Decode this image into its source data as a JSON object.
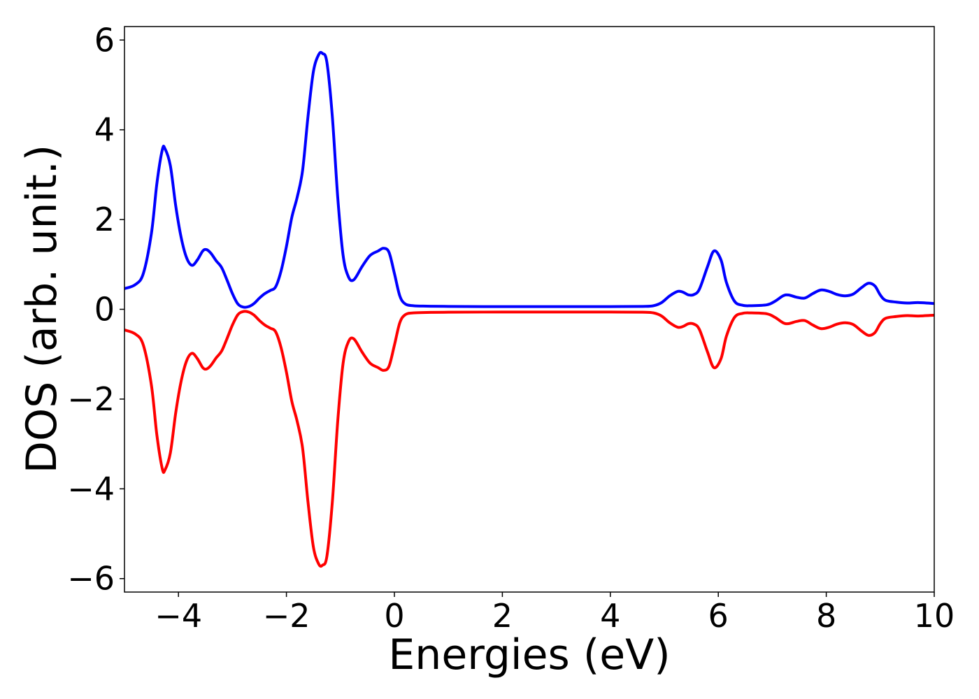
{
  "chart_data": {
    "type": "line",
    "title": "",
    "xlabel": "Energies (eV)",
    "ylabel": "DOS (arb. unit.)",
    "xlim": [
      -5,
      10
    ],
    "ylim": [
      -6.3,
      6.3
    ],
    "xticks": [
      -4,
      -2,
      0,
      2,
      4,
      6,
      8,
      10
    ],
    "xtick_labels": [
      "−4",
      "−2",
      "0",
      "2",
      "4",
      "6",
      "8",
      "10"
    ],
    "yticks": [
      -6,
      -4,
      -2,
      0,
      2,
      4,
      6
    ],
    "ytick_labels": [
      "−6",
      "−4",
      "−2",
      "0",
      "2",
      "4",
      "6"
    ],
    "grid": false,
    "legend": false,
    "series": [
      {
        "color": "#0000ff",
        "points": [
          [
            -5.0,
            0.46
          ],
          [
            -4.8,
            0.55
          ],
          [
            -4.65,
            0.8
          ],
          [
            -4.5,
            1.7
          ],
          [
            -4.4,
            2.8
          ],
          [
            -4.3,
            3.55
          ],
          [
            -4.25,
            3.58
          ],
          [
            -4.15,
            3.2
          ],
          [
            -4.05,
            2.3
          ],
          [
            -3.95,
            1.6
          ],
          [
            -3.85,
            1.15
          ],
          [
            -3.75,
            0.98
          ],
          [
            -3.65,
            1.1
          ],
          [
            -3.55,
            1.3
          ],
          [
            -3.48,
            1.33
          ],
          [
            -3.4,
            1.25
          ],
          [
            -3.3,
            1.08
          ],
          [
            -3.2,
            0.93
          ],
          [
            -3.1,
            0.65
          ],
          [
            -3.0,
            0.35
          ],
          [
            -2.9,
            0.12
          ],
          [
            -2.8,
            0.05
          ],
          [
            -2.7,
            0.06
          ],
          [
            -2.6,
            0.13
          ],
          [
            -2.5,
            0.25
          ],
          [
            -2.4,
            0.35
          ],
          [
            -2.3,
            0.42
          ],
          [
            -2.2,
            0.5
          ],
          [
            -2.1,
            0.85
          ],
          [
            -2.0,
            1.4
          ],
          [
            -1.9,
            2.05
          ],
          [
            -1.8,
            2.5
          ],
          [
            -1.7,
            3.1
          ],
          [
            -1.6,
            4.3
          ],
          [
            -1.5,
            5.3
          ],
          [
            -1.4,
            5.68
          ],
          [
            -1.33,
            5.7
          ],
          [
            -1.25,
            5.5
          ],
          [
            -1.15,
            4.3
          ],
          [
            -1.05,
            2.5
          ],
          [
            -0.95,
            1.2
          ],
          [
            -0.85,
            0.72
          ],
          [
            -0.75,
            0.66
          ],
          [
            -0.6,
            0.95
          ],
          [
            -0.45,
            1.2
          ],
          [
            -0.3,
            1.3
          ],
          [
            -0.2,
            1.36
          ],
          [
            -0.1,
            1.27
          ],
          [
            0.0,
            0.8
          ],
          [
            0.1,
            0.3
          ],
          [
            0.2,
            0.12
          ],
          [
            0.35,
            0.08
          ],
          [
            0.6,
            0.07
          ],
          [
            1.0,
            0.065
          ],
          [
            2.0,
            0.06
          ],
          [
            3.0,
            0.06
          ],
          [
            4.0,
            0.06
          ],
          [
            4.6,
            0.065
          ],
          [
            4.8,
            0.08
          ],
          [
            4.95,
            0.15
          ],
          [
            5.1,
            0.3
          ],
          [
            5.25,
            0.4
          ],
          [
            5.35,
            0.38
          ],
          [
            5.45,
            0.32
          ],
          [
            5.55,
            0.33
          ],
          [
            5.65,
            0.45
          ],
          [
            5.8,
            0.95
          ],
          [
            5.92,
            1.3
          ],
          [
            6.05,
            1.1
          ],
          [
            6.15,
            0.6
          ],
          [
            6.3,
            0.18
          ],
          [
            6.45,
            0.09
          ],
          [
            6.6,
            0.08
          ],
          [
            6.9,
            0.1
          ],
          [
            7.05,
            0.18
          ],
          [
            7.2,
            0.3
          ],
          [
            7.3,
            0.32
          ],
          [
            7.45,
            0.27
          ],
          [
            7.6,
            0.25
          ],
          [
            7.75,
            0.35
          ],
          [
            7.9,
            0.43
          ],
          [
            8.05,
            0.4
          ],
          [
            8.2,
            0.33
          ],
          [
            8.35,
            0.3
          ],
          [
            8.5,
            0.34
          ],
          [
            8.65,
            0.48
          ],
          [
            8.78,
            0.58
          ],
          [
            8.9,
            0.52
          ],
          [
            9.0,
            0.32
          ],
          [
            9.1,
            0.2
          ],
          [
            9.3,
            0.16
          ],
          [
            9.5,
            0.14
          ],
          [
            9.7,
            0.15
          ],
          [
            10.0,
            0.13
          ]
        ]
      },
      {
        "color": "#ff0000",
        "points": [
          [
            -5.0,
            -0.46
          ],
          [
            -4.8,
            -0.55
          ],
          [
            -4.65,
            -0.8
          ],
          [
            -4.5,
            -1.7
          ],
          [
            -4.4,
            -2.8
          ],
          [
            -4.3,
            -3.55
          ],
          [
            -4.25,
            -3.58
          ],
          [
            -4.15,
            -3.2
          ],
          [
            -4.05,
            -2.3
          ],
          [
            -3.95,
            -1.6
          ],
          [
            -3.85,
            -1.15
          ],
          [
            -3.75,
            -0.98
          ],
          [
            -3.65,
            -1.1
          ],
          [
            -3.55,
            -1.3
          ],
          [
            -3.48,
            -1.33
          ],
          [
            -3.4,
            -1.25
          ],
          [
            -3.3,
            -1.08
          ],
          [
            -3.2,
            -0.93
          ],
          [
            -3.1,
            -0.65
          ],
          [
            -3.0,
            -0.35
          ],
          [
            -2.9,
            -0.12
          ],
          [
            -2.8,
            -0.05
          ],
          [
            -2.7,
            -0.06
          ],
          [
            -2.6,
            -0.13
          ],
          [
            -2.5,
            -0.25
          ],
          [
            -2.4,
            -0.35
          ],
          [
            -2.3,
            -0.42
          ],
          [
            -2.2,
            -0.5
          ],
          [
            -2.1,
            -0.85
          ],
          [
            -2.0,
            -1.4
          ],
          [
            -1.9,
            -2.05
          ],
          [
            -1.8,
            -2.5
          ],
          [
            -1.7,
            -3.1
          ],
          [
            -1.6,
            -4.3
          ],
          [
            -1.5,
            -5.3
          ],
          [
            -1.4,
            -5.68
          ],
          [
            -1.33,
            -5.7
          ],
          [
            -1.25,
            -5.5
          ],
          [
            -1.15,
            -4.3
          ],
          [
            -1.05,
            -2.5
          ],
          [
            -0.95,
            -1.2
          ],
          [
            -0.85,
            -0.72
          ],
          [
            -0.75,
            -0.66
          ],
          [
            -0.6,
            -0.95
          ],
          [
            -0.45,
            -1.2
          ],
          [
            -0.3,
            -1.3
          ],
          [
            -0.2,
            -1.36
          ],
          [
            -0.1,
            -1.27
          ],
          [
            0.0,
            -0.8
          ],
          [
            0.1,
            -0.3
          ],
          [
            0.2,
            -0.12
          ],
          [
            0.35,
            -0.08
          ],
          [
            0.6,
            -0.07
          ],
          [
            1.0,
            -0.065
          ],
          [
            2.0,
            -0.06
          ],
          [
            3.0,
            -0.06
          ],
          [
            4.0,
            -0.06
          ],
          [
            4.6,
            -0.065
          ],
          [
            4.8,
            -0.08
          ],
          [
            4.95,
            -0.15
          ],
          [
            5.1,
            -0.3
          ],
          [
            5.25,
            -0.4
          ],
          [
            5.35,
            -0.38
          ],
          [
            5.45,
            -0.32
          ],
          [
            5.55,
            -0.33
          ],
          [
            5.65,
            -0.45
          ],
          [
            5.8,
            -0.95
          ],
          [
            5.92,
            -1.3
          ],
          [
            6.05,
            -1.1
          ],
          [
            6.15,
            -0.6
          ],
          [
            6.3,
            -0.18
          ],
          [
            6.45,
            -0.09
          ],
          [
            6.6,
            -0.08
          ],
          [
            6.9,
            -0.1
          ],
          [
            7.05,
            -0.18
          ],
          [
            7.2,
            -0.3
          ],
          [
            7.3,
            -0.32
          ],
          [
            7.45,
            -0.27
          ],
          [
            7.6,
            -0.25
          ],
          [
            7.75,
            -0.35
          ],
          [
            7.9,
            -0.43
          ],
          [
            8.05,
            -0.4
          ],
          [
            8.2,
            -0.33
          ],
          [
            8.35,
            -0.3
          ],
          [
            8.5,
            -0.34
          ],
          [
            8.65,
            -0.48
          ],
          [
            8.78,
            -0.58
          ],
          [
            8.9,
            -0.52
          ],
          [
            9.0,
            -0.32
          ],
          [
            9.1,
            -0.2
          ],
          [
            9.3,
            -0.16
          ],
          [
            9.5,
            -0.14
          ],
          [
            9.7,
            -0.15
          ],
          [
            10.0,
            -0.13
          ]
        ]
      }
    ]
  }
}
